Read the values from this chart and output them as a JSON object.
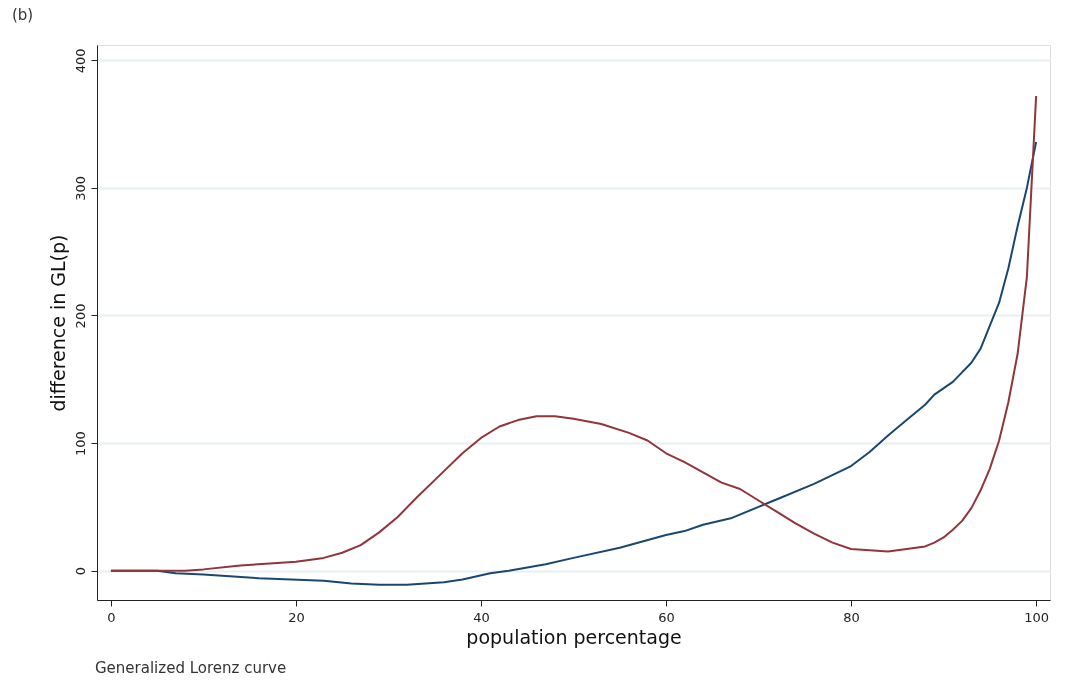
{
  "chart_data": {
    "type": "line",
    "xlabel": "population percentage",
    "ylabel": "difference in GL(p)",
    "annotations": [
      "(b)",
      "Generalized Lorenz curve"
    ],
    "xlim": [
      -1.5,
      101.5
    ],
    "xticks": [
      0,
      20,
      40,
      60,
      80,
      100
    ],
    "ylim": [
      -23,
      412
    ],
    "yticks": [
      0,
      100,
      200,
      300,
      400
    ],
    "grid": "y",
    "legend": false,
    "marker": "none",
    "line_style": "solid",
    "series": [
      {
        "color": "#1a476f",
        "x": [
          0,
          5,
          7,
          10,
          16,
          23,
          26,
          29,
          32,
          36,
          38,
          41,
          43,
          47,
          50,
          55,
          60,
          62,
          64,
          67,
          70,
          72,
          76,
          80,
          82,
          84,
          86,
          88,
          89,
          91,
          93,
          94,
          95,
          96,
          97,
          98,
          99,
          100
        ],
        "values": [
          0,
          0,
          -2,
          -3,
          -6,
          -8,
          -10,
          -11,
          -11,
          -9,
          -7,
          -2,
          0,
          5,
          10,
          18,
          28,
          31,
          36,
          41,
          50,
          56,
          68,
          82,
          93,
          106,
          118,
          130,
          138,
          148,
          163,
          174,
          192,
          210,
          237,
          270,
          300,
          336
        ]
      },
      {
        "color": "#90353b",
        "x": [
          0,
          8,
          10,
          14,
          18,
          20,
          21,
          23,
          25,
          27,
          29,
          31,
          33,
          36,
          38,
          40,
          42,
          44,
          46,
          48,
          50,
          53,
          56,
          58,
          60,
          62,
          64,
          66,
          68,
          70,
          72,
          74,
          76,
          78,
          80,
          82,
          84,
          85,
          86,
          87,
          88,
          89,
          90,
          91,
          92,
          93,
          94,
          95,
          96,
          97,
          98,
          99,
          100
        ],
        "values": [
          0,
          0,
          1,
          4,
          6,
          7,
          8,
          10,
          14,
          20,
          30,
          42,
          57,
          78,
          92,
          104,
          113,
          118,
          121,
          121,
          119,
          115,
          108,
          102,
          92,
          85,
          77,
          69,
          64,
          55,
          46,
          37,
          29,
          22,
          17,
          16,
          15,
          16,
          17,
          18,
          19,
          22,
          26,
          32,
          39,
          49,
          63,
          80,
          102,
          132,
          170,
          230,
          372
        ]
      }
    ]
  }
}
